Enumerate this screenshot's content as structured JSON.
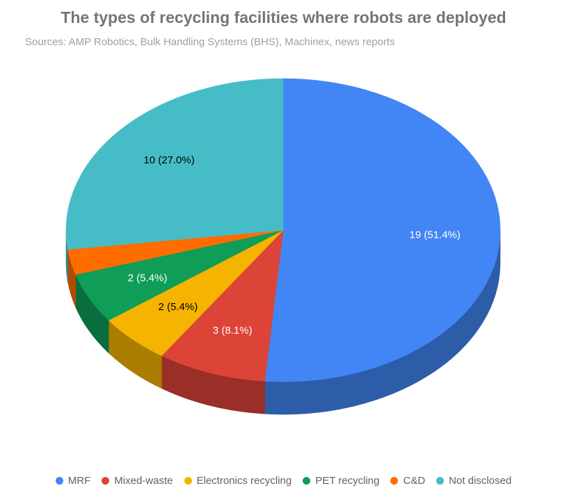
{
  "chart_data": {
    "type": "pie",
    "title": "The types of recycling facilities where robots are deployed",
    "subtitle": "Sources: AMP Robotics, Bulk Handling Systems (BHS), Machinex, news reports",
    "legend_position": "bottom",
    "categories": [
      "MRF",
      "Mixed-waste",
      "Electronics recycling",
      "PET recycling",
      "C&D",
      "Not disclosed"
    ],
    "values": [
      19,
      3,
      2,
      2,
      1,
      10
    ],
    "data_labels": [
      "19 (51.4%)",
      "3 (8.1%)",
      "2 (5.4%)",
      "2 (5.4%)",
      "",
      "10 (27.0%)"
    ],
    "colors": [
      "#4285f4",
      "#db4437",
      "#f4b400",
      "#0f9d58",
      "#ff6d01",
      "#46bdc6"
    ],
    "side_colors": [
      "#2d5ca9",
      "#992f27",
      "#aa7d00",
      "#0a6d3d",
      "#b24c00",
      "#318489"
    ],
    "label_colors": [
      "#ffffff",
      "#ffffff",
      "#000000",
      "#ffffff",
      "#000000",
      "#000000"
    ]
  }
}
